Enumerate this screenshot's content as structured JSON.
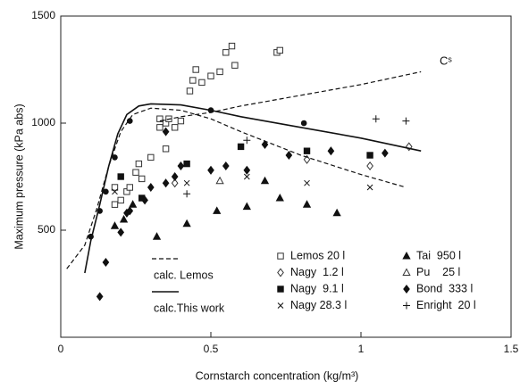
{
  "chart_data": {
    "type": "scatter",
    "x_label": "Cornstarch concentration     (kg/m³)",
    "y_label": "Maximum  pressure  (kPa abs)",
    "annotation": "Cˢ",
    "xlim": [
      0,
      1.5
    ],
    "xticks": [
      0,
      0.5,
      1,
      1.5
    ],
    "ylim": [
      0,
      1500
    ],
    "yticks": [
      500,
      1000,
      1500
    ],
    "series": [
      {
        "name": "Lemos 20 l",
        "marker": "square-open",
        "color": "#333333",
        "x": [
          0.18,
          0.18,
          0.2,
          0.22,
          0.23,
          0.25,
          0.26,
          0.27,
          0.3,
          0.33,
          0.33,
          0.35,
          0.35,
          0.36,
          0.38,
          0.4,
          0.43,
          0.44,
          0.45,
          0.47,
          0.5,
          0.53,
          0.55,
          0.57,
          0.58,
          0.72,
          0.73
        ],
        "values": [
          700,
          620,
          640,
          680,
          700,
          770,
          810,
          740,
          840,
          980,
          1020,
          1000,
          880,
          1020,
          980,
          1010,
          1150,
          1200,
          1250,
          1190,
          1220,
          1240,
          1330,
          1360,
          1270,
          1330,
          1340
        ]
      },
      {
        "name": "Nagy  1.2 l",
        "marker": "diamond-open",
        "color": "#333333",
        "x": [
          0.38,
          0.82,
          1.03,
          1.16
        ],
        "values": [
          720,
          830,
          800,
          890
        ]
      },
      {
        "name": "Nagy  9.1 l",
        "marker": "square",
        "color": "#111111",
        "x": [
          0.2,
          0.27,
          0.42,
          0.6,
          0.82,
          1.03
        ],
        "values": [
          750,
          650,
          810,
          890,
          870,
          850
        ]
      },
      {
        "name": "Nagy 28.3 l",
        "marker": "x",
        "color": "#111111",
        "x": [
          0.18,
          0.42,
          0.62,
          0.82,
          1.03
        ],
        "values": [
          680,
          720,
          750,
          720,
          700
        ]
      },
      {
        "name": "Tai  950 l",
        "marker": "triangle",
        "color": "#111111",
        "x": [
          0.18,
          0.21,
          0.24,
          0.32,
          0.42,
          0.52,
          0.62,
          0.68,
          0.73,
          0.82,
          0.92
        ],
        "values": [
          520,
          550,
          620,
          470,
          530,
          590,
          610,
          730,
          650,
          620,
          580
        ]
      },
      {
        "name": "Pu    25 l",
        "marker": "triangle-open",
        "color": "#333333",
        "x": [
          0.53
        ],
        "values": [
          730
        ]
      },
      {
        "name": "Bond  333 l",
        "marker": "diamond",
        "color": "#111111",
        "x": [
          0.13,
          0.15,
          0.2,
          0.22,
          0.23,
          0.28,
          0.3,
          0.35,
          0.35,
          0.38,
          0.4,
          0.5,
          0.55,
          0.62,
          0.68,
          0.76,
          0.9,
          1.08
        ],
        "values": [
          190,
          350,
          490,
          580,
          590,
          640,
          700,
          720,
          960,
          750,
          800,
          780,
          800,
          780,
          900,
          850,
          870,
          860
        ]
      },
      {
        "name": "Enright  20 l",
        "marker": "plus",
        "color": "#111111",
        "x": [
          0.42,
          0.62,
          1.05,
          1.15
        ],
        "values": [
          670,
          920,
          1020,
          1010
        ]
      }
    ],
    "curves": [
      {
        "name": "calc. Lemos",
        "dash": true,
        "color": "#111111",
        "x": [
          0.02,
          0.08,
          0.12,
          0.16,
          0.2,
          0.24,
          0.3,
          0.4,
          0.5,
          0.6,
          0.8,
          1.0,
          1.15
        ],
        "values": [
          320,
          430,
          600,
          800,
          960,
          1040,
          1070,
          1060,
          1020,
          960,
          850,
          760,
          700
        ]
      },
      {
        "name": "calc.This work",
        "dash": false,
        "color": "#111111",
        "x": [
          0.08,
          0.1,
          0.13,
          0.16,
          0.19,
          0.22,
          0.26,
          0.3,
          0.4,
          0.5,
          0.6,
          0.8,
          1.0,
          1.2
        ],
        "values": [
          300,
          450,
          620,
          800,
          950,
          1040,
          1080,
          1090,
          1085,
          1060,
          1030,
          980,
          930,
          870
        ],
        "marker_x": [
          0.1,
          0.13,
          0.15,
          0.18,
          0.23,
          0.5,
          0.81
        ],
        "marker_values": [
          470,
          590,
          680,
          840,
          1010,
          1060,
          1000
        ]
      },
      {
        "dash": true,
        "color": "#111111",
        "x": [
          0.33,
          0.4,
          0.5,
          0.6,
          0.8,
          1.0,
          1.2
        ],
        "values": [
          1010,
          1030,
          1050,
          1080,
          1130,
          1180,
          1240
        ]
      }
    ]
  }
}
